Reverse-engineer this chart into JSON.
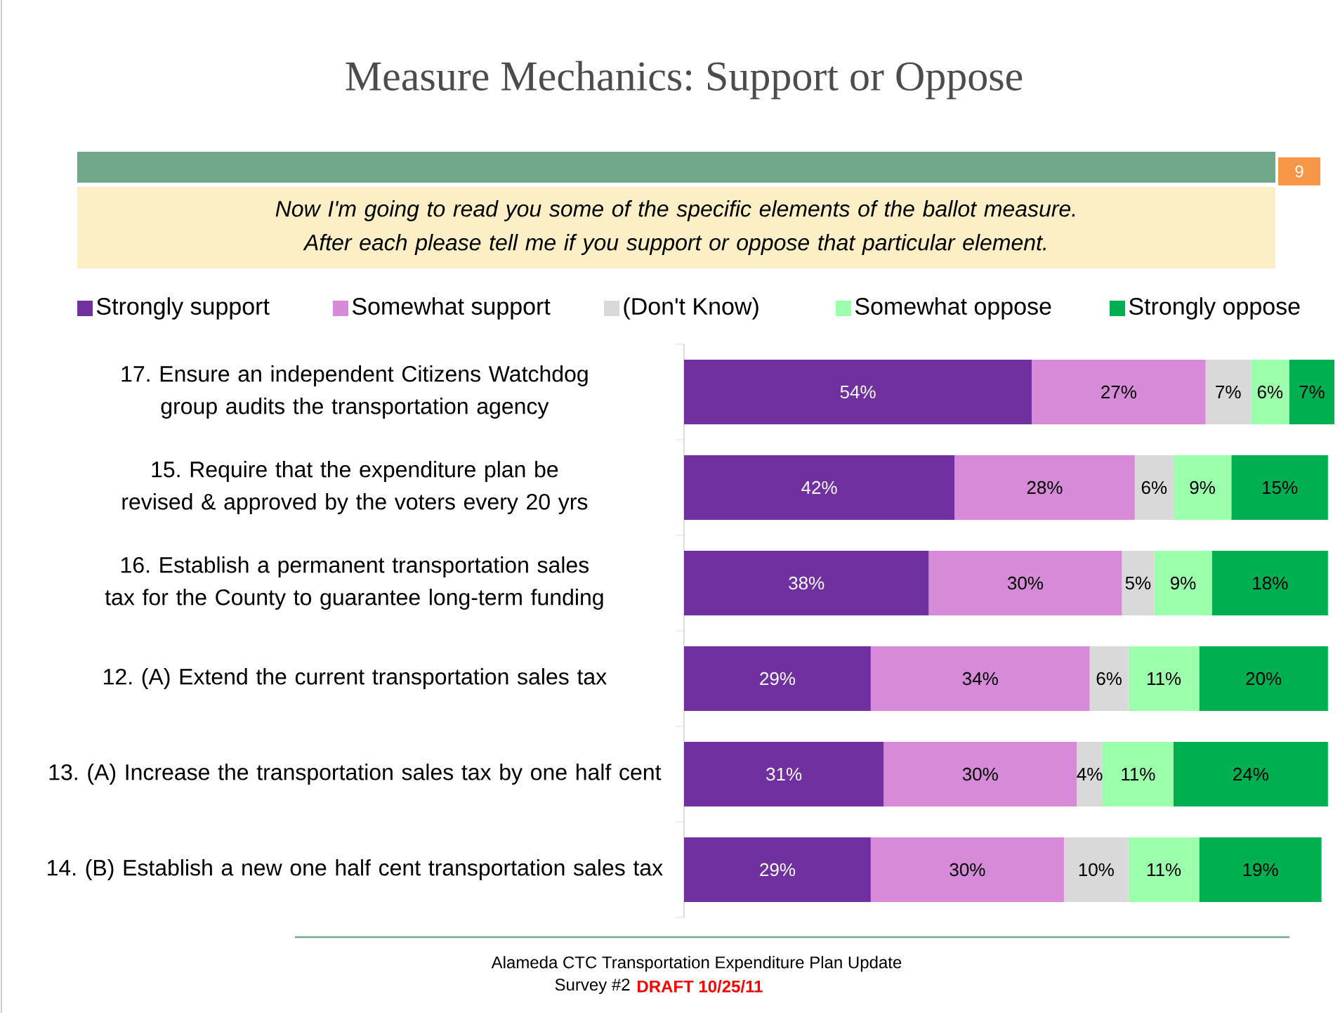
{
  "chart_data": {
    "type": "bar",
    "orientation": "horizontal",
    "stacked": true,
    "legend": "top",
    "title": "Measure Mechanics: Support or Oppose",
    "subtitle": "Now I'm going to read you some of the specific elements of the ballot measure. After each please tell me if you support or oppose that particular element.",
    "categories": [
      "17. Ensure an independent Citizens Watchdog group audits the transportation agency",
      "15. Require that the expenditure plan be revised & approved by the voters every 20 yrs",
      "16. Establish a permanent transportation sales tax for the County to guarantee long-term funding",
      "12. (A) Extend the current transportation sales tax",
      "13. (A) Increase the transportation sales tax by one half cent",
      "14. (B) Establish a new one half cent transportation sales tax"
    ],
    "series": [
      {
        "name": "Strongly support",
        "color": "#7030a0",
        "values": [
          54,
          42,
          38,
          29,
          31,
          29
        ],
        "value_labels": [
          "54%",
          "42%",
          "38%",
          "29%",
          "31%",
          "29%"
        ]
      },
      {
        "name": "Somewhat support",
        "color": "#d68ad8",
        "values": [
          27,
          28,
          30,
          34,
          30,
          30
        ],
        "value_labels": [
          "27%",
          "28%",
          "30%",
          "34%",
          "30%",
          "30%"
        ]
      },
      {
        "name": "(Don't Know)",
        "color": "#d9d9d9",
        "values": [
          7,
          6,
          5,
          6,
          4,
          10
        ],
        "value_labels": [
          "7%",
          "6%",
          "5%",
          "6%",
          "4%",
          "10%"
        ]
      },
      {
        "name": "Somewhat oppose",
        "color": "#9cffac",
        "values": [
          6,
          9,
          9,
          11,
          11,
          11
        ],
        "value_labels": [
          "6%",
          "9%",
          "9%",
          "11%",
          "11%",
          "11%"
        ]
      },
      {
        "name": "Strongly oppose",
        "color": "#00b050",
        "values": [
          7,
          15,
          18,
          20,
          24,
          19
        ],
        "value_labels": [
          "7%",
          "15%",
          "18%",
          "20%",
          "24%",
          "19%"
        ]
      }
    ],
    "annotations": [
      "9",
      "Alameda CTC Transportation Expenditure Plan Update",
      "Survey #2",
      "DRAFT 10/25/11"
    ]
  }
}
